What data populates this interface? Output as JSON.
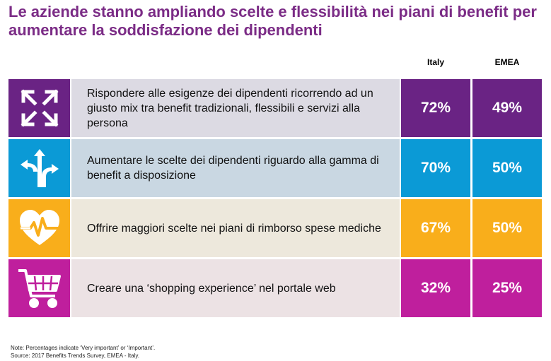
{
  "title": "Le aziende stanno ampliando scelte e flessibilità nei piani di benefit per aumentare la soddisfazione dei dipendenti",
  "chart_data": {
    "type": "table",
    "columns": [
      "Italy",
      "EMEA"
    ],
    "rows": [
      {
        "label": "Rispondere alle esigenze dei dipendenti ricorrendo ad un giusto mix tra benefit tradizionali, flessibili e servizi alla persona",
        "italy": "72%",
        "emea": "49%",
        "icon": "expand-arrows-icon",
        "colors": {
          "icon_bg": "#6a2384",
          "text_bg": "#dcdae3",
          "value_bg": "#6a2384"
        }
      },
      {
        "label": "Aumentare le scelte dei dipendenti riguardo alla gamma di benefit a disposizione",
        "italy": "70%",
        "emea": "50%",
        "icon": "split-arrows-icon",
        "colors": {
          "icon_bg": "#0b9ad6",
          "text_bg": "#c9d7e2",
          "value_bg": "#0b9ad6"
        }
      },
      {
        "label": "Offrire maggiori scelte nei piani di rimborso spese mediche",
        "italy": "67%",
        "emea": "50%",
        "icon": "heart-pulse-icon",
        "colors": {
          "icon_bg": "#f9ae1b",
          "text_bg": "#ede8dc",
          "value_bg": "#f9ae1b"
        }
      },
      {
        "label": "Creare una ‘shopping experience’ nel portale web",
        "italy": "32%",
        "emea": "25%",
        "icon": "shopping-cart-icon",
        "colors": {
          "icon_bg": "#bf1f9d",
          "text_bg": "#ece2e4",
          "value_bg": "#bf1f9d"
        }
      }
    ]
  },
  "note": {
    "line1": "Note: Percentages indicate ‘Very important’ or ‘Important’.",
    "line2": "Source: 2017  Benefits Trends Survey, EMEA - Italy."
  },
  "colors": {
    "title": "#7b2c86"
  }
}
